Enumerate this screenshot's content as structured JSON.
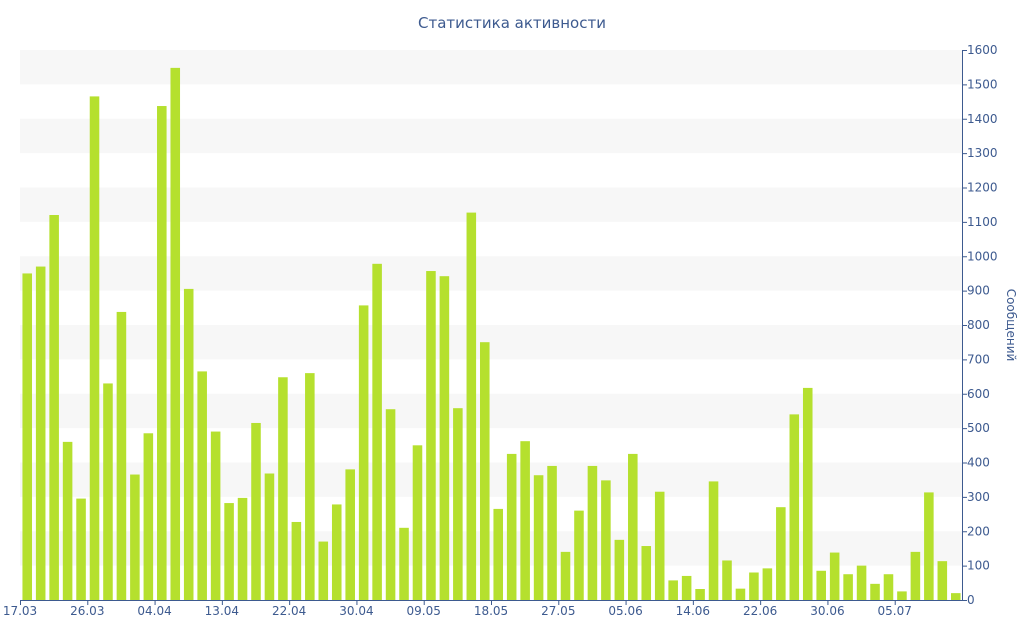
{
  "chart_data": {
    "type": "bar",
    "title": "Статистика активности",
    "ylabel": "Сообщений",
    "xlabel": "",
    "ylim": [
      0,
      1600
    ],
    "y_ticks": [
      0,
      100,
      200,
      300,
      400,
      500,
      600,
      700,
      800,
      900,
      1000,
      1100,
      1200,
      1300,
      1400,
      1500,
      1600
    ],
    "y_axis_side": "right",
    "x_tick_labels": [
      {
        "label": "17.03",
        "index": 0
      },
      {
        "label": "26.03",
        "index": 5
      },
      {
        "label": "04.04",
        "index": 10
      },
      {
        "label": "13.04",
        "index": 15
      },
      {
        "label": "22.04",
        "index": 20
      },
      {
        "label": "30.04",
        "index": 25
      },
      {
        "label": "09.05",
        "index": 30
      },
      {
        "label": "18.05",
        "index": 35
      },
      {
        "label": "27.05",
        "index": 40
      },
      {
        "label": "05.06",
        "index": 45
      },
      {
        "label": "14.06",
        "index": 50
      },
      {
        "label": "22.06",
        "index": 55
      },
      {
        "label": "30.06",
        "index": 60
      },
      {
        "label": "05.07",
        "index": 65
      }
    ],
    "values": [
      950,
      970,
      1120,
      460,
      295,
      1465,
      630,
      838,
      365,
      485,
      1437,
      1548,
      905,
      665,
      490,
      282,
      297,
      515,
      368,
      648,
      227,
      660,
      170,
      278,
      380,
      857,
      978,
      555,
      210,
      450,
      957,
      942,
      558,
      1127,
      750,
      265,
      425,
      462,
      363,
      390,
      140,
      260,
      390,
      348,
      175,
      425,
      157,
      315,
      57,
      70,
      32,
      345,
      115,
      33,
      80,
      92,
      270,
      540,
      617,
      85,
      138,
      75,
      100,
      47,
      75,
      25,
      140,
      313,
      113,
      20
    ],
    "grid": "alternating horizontal bands",
    "colors": {
      "bar": "#b5e02e",
      "band": "#f7f7f7",
      "axis": "#3d5a8f",
      "text": "#3d5a8f"
    }
  }
}
